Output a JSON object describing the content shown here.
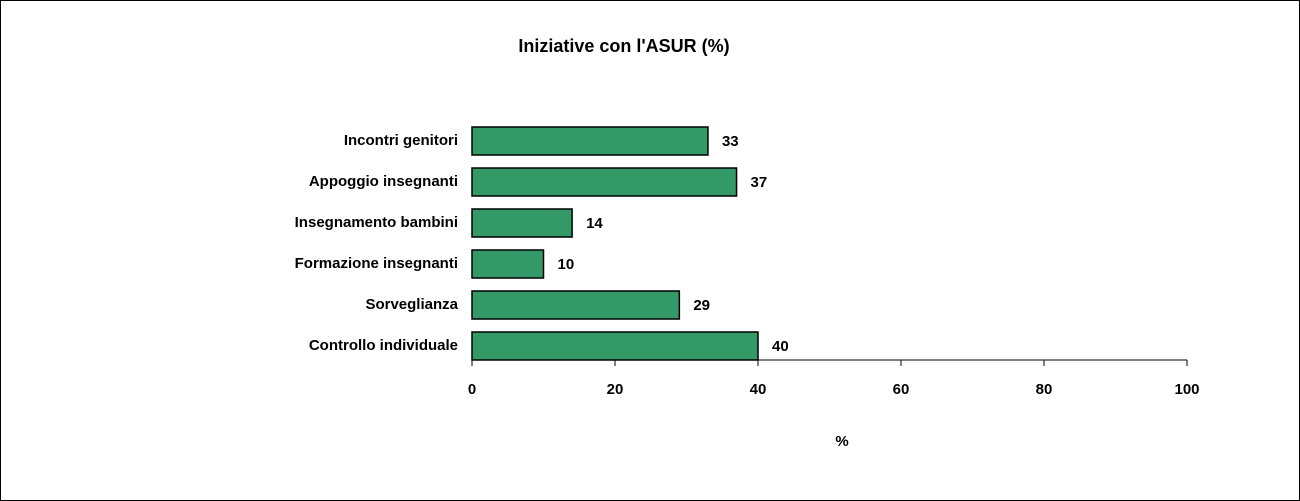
{
  "chart_data": {
    "type": "bar",
    "orientation": "horizontal",
    "title": "Iniziative con l'ASUR (%)",
    "categories": [
      "Incontri genitori",
      "Appoggio insegnanti",
      "Insegnamento bambini",
      "Formazione insegnanti",
      "Sorveglianza",
      "Controllo individuale"
    ],
    "values": [
      33,
      37,
      14,
      10,
      29,
      40
    ],
    "color": "#339966",
    "xlabel": "%",
    "xlim": [
      0,
      100
    ],
    "xticks": [
      0,
      20,
      40,
      60,
      80,
      100
    ]
  }
}
